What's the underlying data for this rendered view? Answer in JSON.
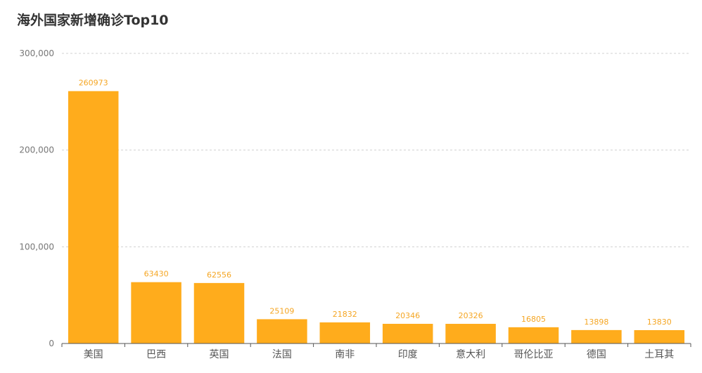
{
  "chart_data": {
    "type": "bar",
    "title": "海外国家新增确诊Top10",
    "categories": [
      "美国",
      "巴西",
      "英国",
      "法国",
      "南非",
      "印度",
      "意大利",
      "哥伦比亚",
      "德国",
      "土耳其"
    ],
    "values": [
      260973,
      63430,
      62556,
      25109,
      21832,
      20346,
      20326,
      16805,
      13898,
      13830
    ],
    "yticks": [
      "0",
      "100,000",
      "200,000",
      "300,000"
    ],
    "ylim": [
      0,
      300000
    ],
    "grid": "horizontal-dashed",
    "bar_color": "#ffac1c",
    "label_color": "#f5a623"
  }
}
